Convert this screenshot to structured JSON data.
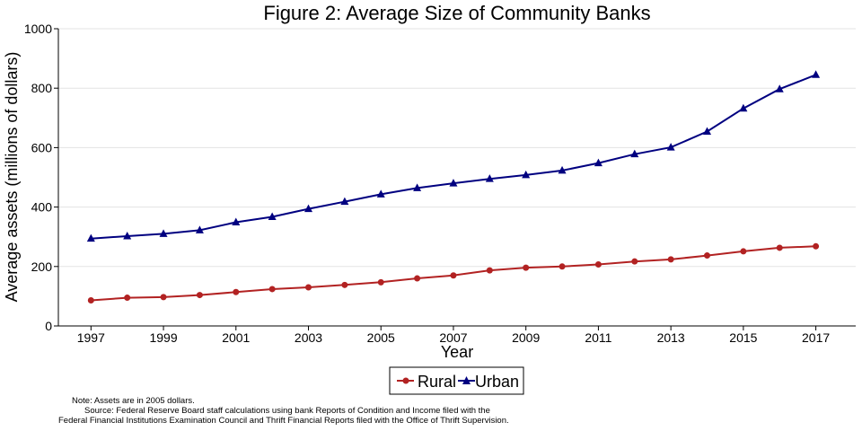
{
  "chart_data": {
    "type": "line",
    "title": "Figure 2: Average Size of Community Banks",
    "xlabel": "Year",
    "ylabel": "Average assets (millions of dollars)",
    "x": [
      1997,
      1998,
      1999,
      2000,
      2001,
      2002,
      2003,
      2004,
      2005,
      2006,
      2007,
      2008,
      2009,
      2010,
      2011,
      2012,
      2013,
      2014,
      2015,
      2016,
      2017
    ],
    "xticks": [
      "1997",
      "1999",
      "2001",
      "2003",
      "2005",
      "2007",
      "2009",
      "2011",
      "2013",
      "2015",
      "2017"
    ],
    "xlim": [
      1996.1,
      2018.1
    ],
    "ylim": [
      0,
      1000
    ],
    "yticks": [
      "0",
      "200",
      "400",
      "600",
      "800",
      "1000"
    ],
    "grid": "horizontal",
    "legend_position": "bottom",
    "series": [
      {
        "name": "Rural",
        "color": "#b22222",
        "marker": "circle",
        "values": [
          86,
          95,
          97,
          104,
          114,
          124,
          130,
          138,
          147,
          160,
          170,
          187,
          196,
          200,
          207,
          217,
          224,
          237,
          251,
          263,
          268
        ]
      },
      {
        "name": "Urban",
        "color": "#000080",
        "marker": "triangle",
        "values": [
          294,
          302,
          310,
          322,
          349,
          367,
          394,
          418,
          443,
          464,
          480,
          495,
          508,
          523,
          548,
          578,
          601,
          654,
          732,
          797,
          845
        ]
      }
    ]
  },
  "notes": {
    "line1": "Note: Assets are in 2005 dollars.",
    "line2": "Source: Federal Reserve Board staff calculations using bank Reports of Condition and Income filed with the",
    "line3": "Federal Financial Institutions Examination Council and Thrift Financial Reports filed with the Office of Thrift Supervision."
  }
}
